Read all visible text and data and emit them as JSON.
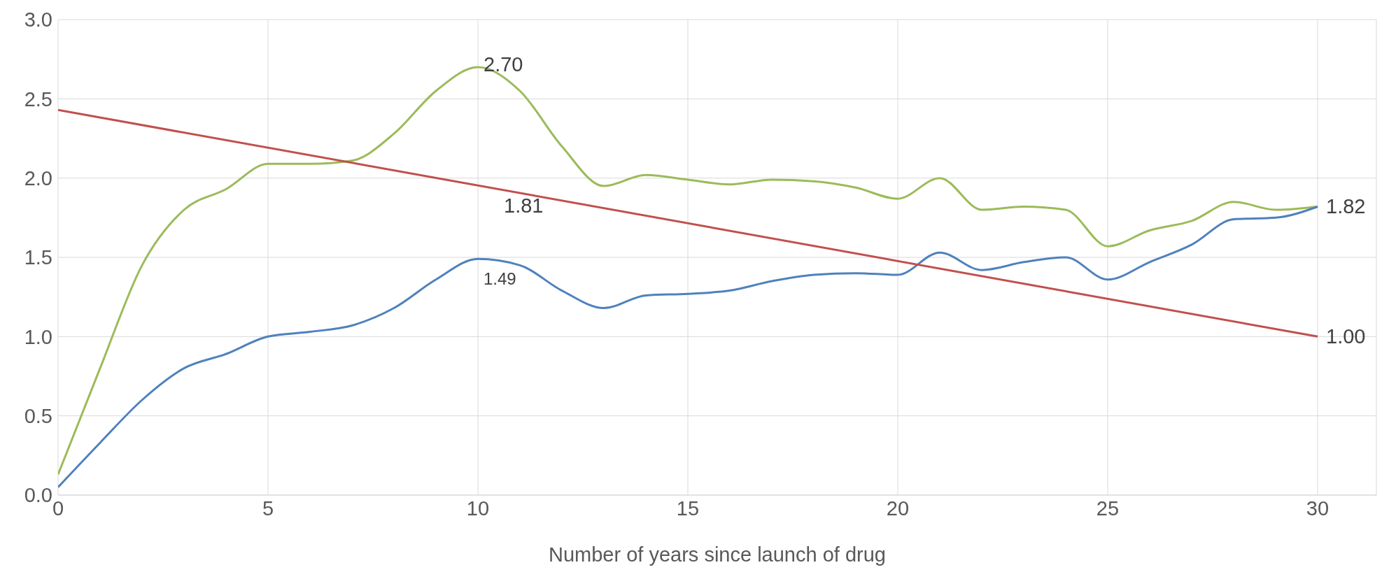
{
  "chart_data": {
    "type": "line",
    "xlabel": "Number of years since launch of drug",
    "x": [
      0,
      1,
      2,
      3,
      4,
      5,
      6,
      7,
      8,
      9,
      10,
      11,
      12,
      13,
      14,
      15,
      16,
      17,
      18,
      19,
      20,
      21,
      22,
      23,
      24,
      25,
      26,
      27,
      28,
      29,
      30
    ],
    "series": [
      {
        "color": "#9bbb59",
        "values": [
          0.13,
          0.8,
          1.45,
          1.8,
          1.93,
          2.09,
          2.09,
          2.11,
          2.28,
          2.55,
          2.7,
          2.55,
          2.2,
          1.95,
          2.02,
          1.99,
          1.96,
          1.99,
          1.98,
          1.94,
          1.87,
          2.0,
          1.8,
          1.82,
          1.8,
          1.57,
          1.67,
          1.73,
          1.85,
          1.8,
          1.82
        ],
        "value_labels": [
          null,
          null,
          null,
          null,
          null,
          null,
          null,
          null,
          null,
          null,
          "2.70",
          null,
          null,
          null,
          null,
          null,
          null,
          null,
          null,
          null,
          null,
          null,
          null,
          null,
          null,
          null,
          null,
          null,
          null,
          null,
          "1.82"
        ]
      },
      {
        "color": "#4f81bd",
        "values": [
          0.05,
          0.33,
          0.6,
          0.8,
          0.89,
          1.0,
          1.03,
          1.07,
          1.18,
          1.36,
          1.49,
          1.45,
          1.29,
          1.18,
          1.26,
          1.27,
          1.29,
          1.35,
          1.39,
          1.4,
          1.39,
          1.53,
          1.42,
          1.47,
          1.5,
          1.36,
          1.47,
          1.58,
          1.74,
          1.75,
          1.82
        ],
        "value_labels": [
          null,
          null,
          null,
          null,
          null,
          null,
          null,
          null,
          null,
          null,
          "1.49",
          null,
          null,
          null,
          null,
          null,
          null,
          null,
          null,
          null,
          null,
          null,
          null,
          null,
          null,
          null,
          null,
          null,
          null,
          null,
          null
        ]
      },
      {
        "color": "#c0504d",
        "x": [
          0,
          30
        ],
        "values": [
          2.43,
          1.0
        ],
        "value_labels": [
          null,
          "1.00"
        ]
      }
    ],
    "annotations": [
      "1.81"
    ],
    "xlim": [
      0,
      31.4
    ],
    "xticks": [
      0,
      5,
      10,
      15,
      20,
      25,
      30
    ],
    "ylim": [
      0,
      3
    ],
    "yticks": [
      {
        "value": 0,
        "label": "0.0"
      },
      0.5,
      {
        "value": 1,
        "label": "1.0"
      },
      1.5,
      {
        "value": 2,
        "label": "2.0"
      },
      2.5,
      {
        "value": 3,
        "label": "3.0"
      }
    ],
    "grid": true,
    "marker": "none",
    "line_style": "solid",
    "legend": false
  }
}
